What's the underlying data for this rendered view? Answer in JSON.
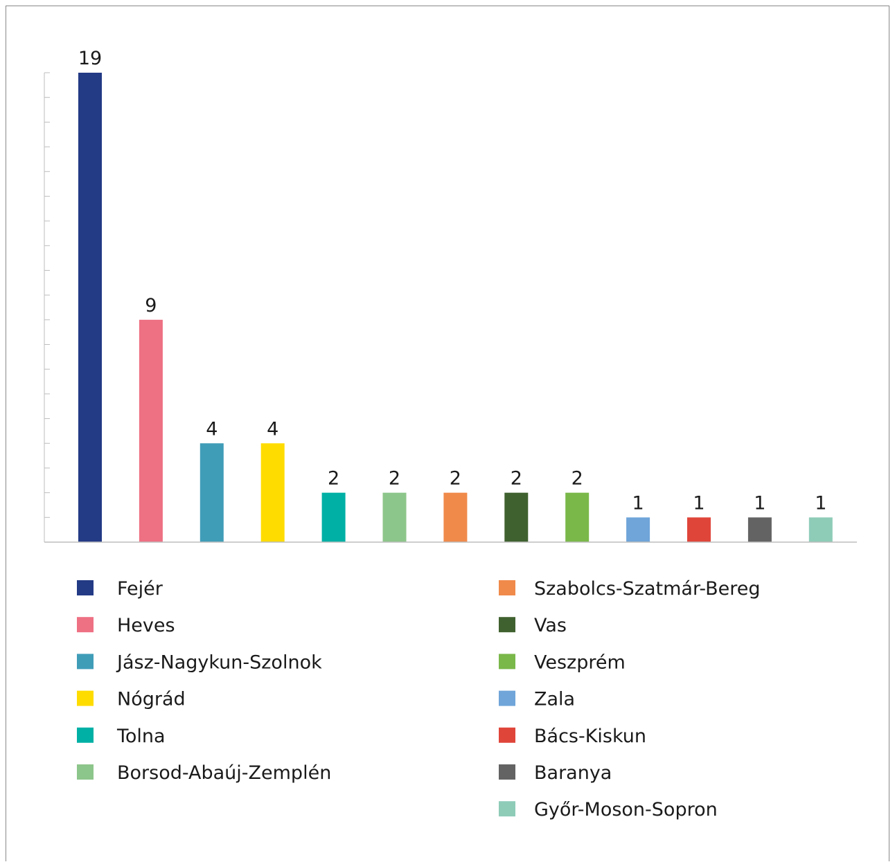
{
  "chart_data": {
    "type": "bar",
    "title": "",
    "xlabel": "",
    "ylabel": "",
    "ylim": [
      0,
      19
    ],
    "y_ticks_visible": false,
    "grid": false,
    "legend": "bottom",
    "categories": [
      "Fejér",
      "Heves",
      "Jász-Nagykun-Szolnok",
      "Nógrád",
      "Tolna",
      "Borsod-Abaúj-Zemplén",
      "Szabolcs-Szatmár-Bereg",
      "Vas",
      "Veszprém",
      "Zala",
      "Bács-Kiskun",
      "Baranya",
      "Győr-Moson-Sopron"
    ],
    "values": [
      19,
      9,
      4,
      4,
      2,
      2,
      2,
      2,
      2,
      1,
      1,
      1,
      1
    ],
    "value_labels": [
      "19",
      "9",
      "4",
      "4",
      "2",
      "2",
      "2",
      "2",
      "2",
      "1",
      "1",
      "1",
      "1"
    ],
    "colors": [
      "#233A85",
      "#EE7083",
      "#409DB8",
      "#FFDC00",
      "#00B0A5",
      "#8DC68A",
      "#F08A4B",
      "#3F612F",
      "#7AB84A",
      "#6FA5D9",
      "#E0453A",
      "#636363",
      "#8ECCB8"
    ]
  }
}
